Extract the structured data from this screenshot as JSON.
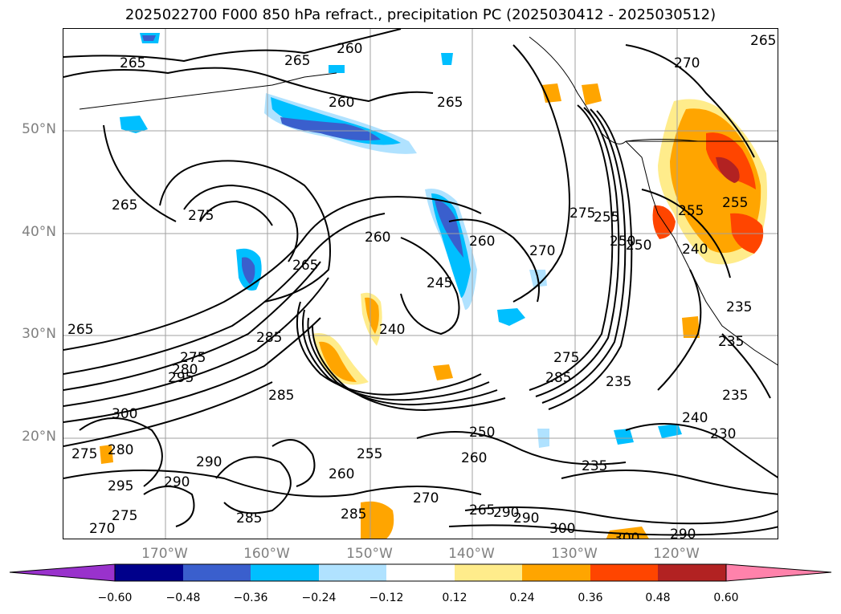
{
  "title": "2025022700 F000 850 hPa refract., precipitation PC (2025030412 - 2025030512)",
  "lat_labels": [
    "50°N",
    "40°N",
    "30°N",
    "20°N"
  ],
  "lon_labels": [
    "170°W",
    "160°W",
    "150°W",
    "140°W",
    "130°W",
    "120°W"
  ],
  "colorbar": {
    "ticks": [
      "−0.60",
      "−0.48",
      "−0.36",
      "−0.24",
      "−0.12",
      "0.12",
      "0.24",
      "0.36",
      "0.48",
      "0.60"
    ],
    "colors": [
      "#9932cc",
      "#00008b",
      "#3a5fcd",
      "#00bfff",
      "#b0e2ff",
      "#ffffff",
      "#ffec8b",
      "#ffa500",
      "#ff4500",
      "#b22222",
      "#ff82ab"
    ]
  },
  "contour_labels": [
    "265",
    "265",
    "260",
    "260",
    "265",
    "275",
    "265",
    "270",
    "260",
    "260",
    "265",
    "275",
    "270",
    "265",
    "265",
    "285",
    "275",
    "280",
    "295",
    "285",
    "300",
    "275",
    "280",
    "290",
    "295",
    "290",
    "285",
    "275",
    "270",
    "285",
    "255",
    "260",
    "250",
    "260",
    "245",
    "240",
    "235",
    "235",
    "235",
    "230",
    "240",
    "250",
    "255",
    "255",
    "240",
    "235",
    "235",
    "270",
    "265",
    "290",
    "290",
    "300",
    "300",
    "290",
    "285",
    "275",
    "250",
    "255"
  ],
  "colors": {
    "axis_label": "#808080",
    "contour": "#000000",
    "gridline": "#a0a0a0"
  }
}
